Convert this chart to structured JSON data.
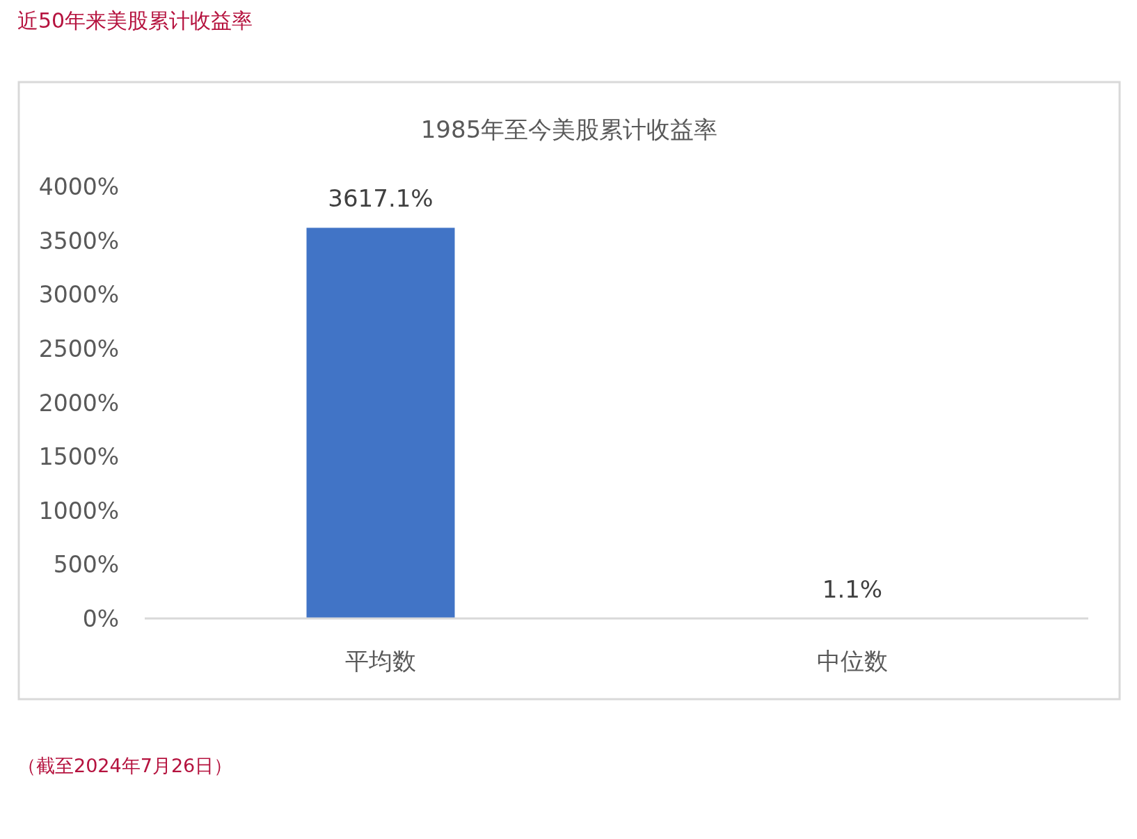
{
  "chart_data": {
    "type": "bar",
    "title": "近50年来美股累计收益率",
    "subtitle": "1985年至今美股累计收益率",
    "categories": [
      "平均数",
      "中位数"
    ],
    "values": [
      3617.1,
      1.1
    ],
    "color": "#4174c6",
    "value_labels": [
      "3617.1%",
      "1.1%"
    ],
    "ylim": [
      0,
      4000
    ],
    "yticks": [
      {
        "value": 0,
        "label": "0%"
      },
      {
        "value": 500,
        "label": "500%"
      },
      {
        "value": 1000,
        "label": "1000%"
      },
      {
        "value": 1500,
        "label": "1500%"
      },
      {
        "value": 2000,
        "label": "2000%"
      },
      {
        "value": 2500,
        "label": "2500%"
      },
      {
        "value": 3000,
        "label": "3000%"
      },
      {
        "value": 3500,
        "label": "3500%"
      },
      {
        "value": 4000,
        "label": "4000%"
      }
    ],
    "grid": false,
    "annotations": [
      "（截至2024年7月26日）"
    ]
  }
}
